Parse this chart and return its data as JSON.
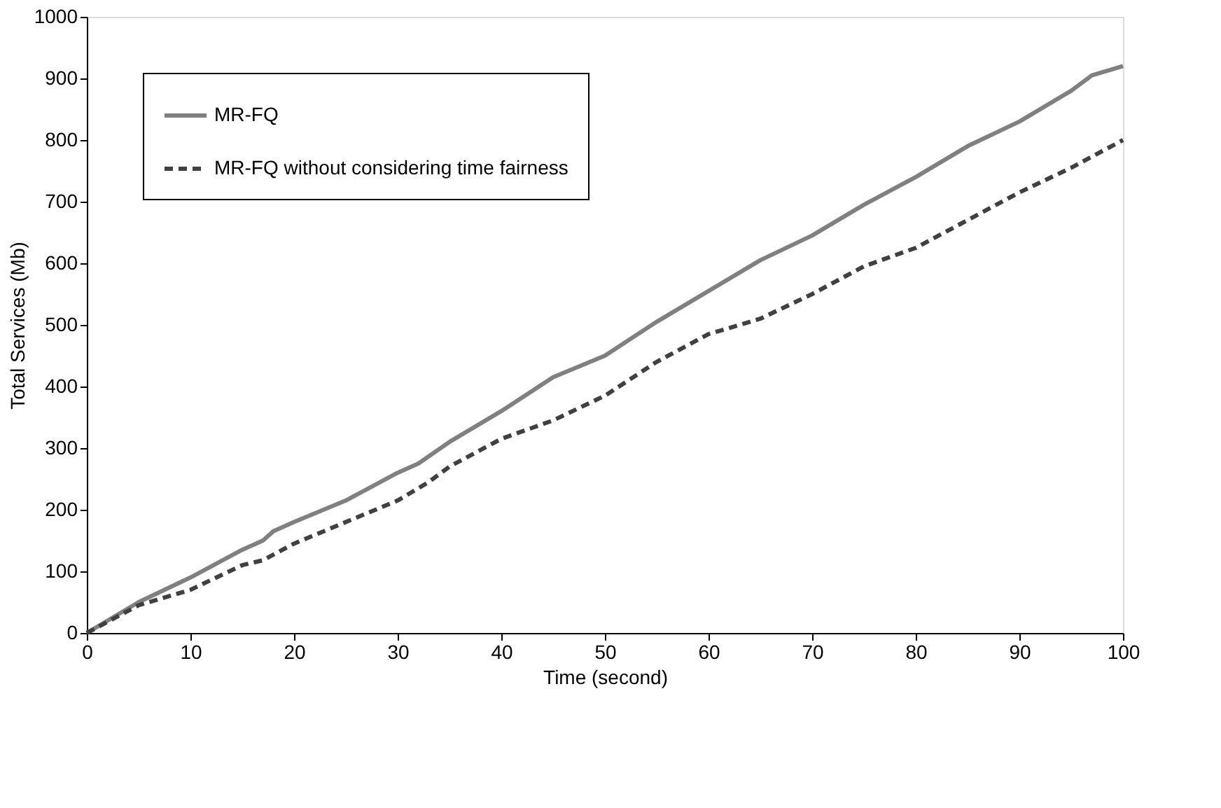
{
  "chart_data": {
    "type": "line",
    "xlabel": "Time (second)",
    "ylabel": "Total Services (Mb)",
    "xlim": [
      0,
      100
    ],
    "xticks": [
      0,
      10,
      20,
      30,
      40,
      50,
      60,
      70,
      80,
      90,
      100
    ],
    "ylim": [
      0,
      1000
    ],
    "yticks": [
      0,
      100,
      200,
      300,
      400,
      500,
      600,
      700,
      800,
      900,
      1000
    ],
    "grid": false,
    "legend": "top left",
    "marker": "none",
    "series": [
      {
        "name": "MR-FQ",
        "color": "#808080",
        "line_style": "solid",
        "x": [
          0,
          5,
          10,
          15,
          17,
          18,
          20,
          25,
          30,
          32,
          35,
          40,
          45,
          50,
          55,
          60,
          65,
          70,
          75,
          80,
          85,
          90,
          95,
          97,
          100
        ],
        "values": [
          0,
          50,
          90,
          135,
          150,
          165,
          180,
          215,
          260,
          275,
          310,
          360,
          415,
          450,
          505,
          555,
          605,
          645,
          695,
          740,
          790,
          830,
          880,
          905,
          920
        ]
      },
      {
        "name": "MR-FQ without considering time fairness",
        "color": "#404040",
        "line_style": "dashed",
        "x": [
          0,
          5,
          10,
          15,
          17,
          20,
          25,
          30,
          33,
          35,
          40,
          45,
          50,
          55,
          60,
          65,
          70,
          75,
          80,
          85,
          90,
          95,
          100
        ],
        "values": [
          0,
          45,
          70,
          110,
          118,
          145,
          180,
          215,
          245,
          270,
          315,
          345,
          385,
          440,
          485,
          510,
          550,
          595,
          625,
          670,
          715,
          755,
          800
        ]
      }
    ]
  }
}
